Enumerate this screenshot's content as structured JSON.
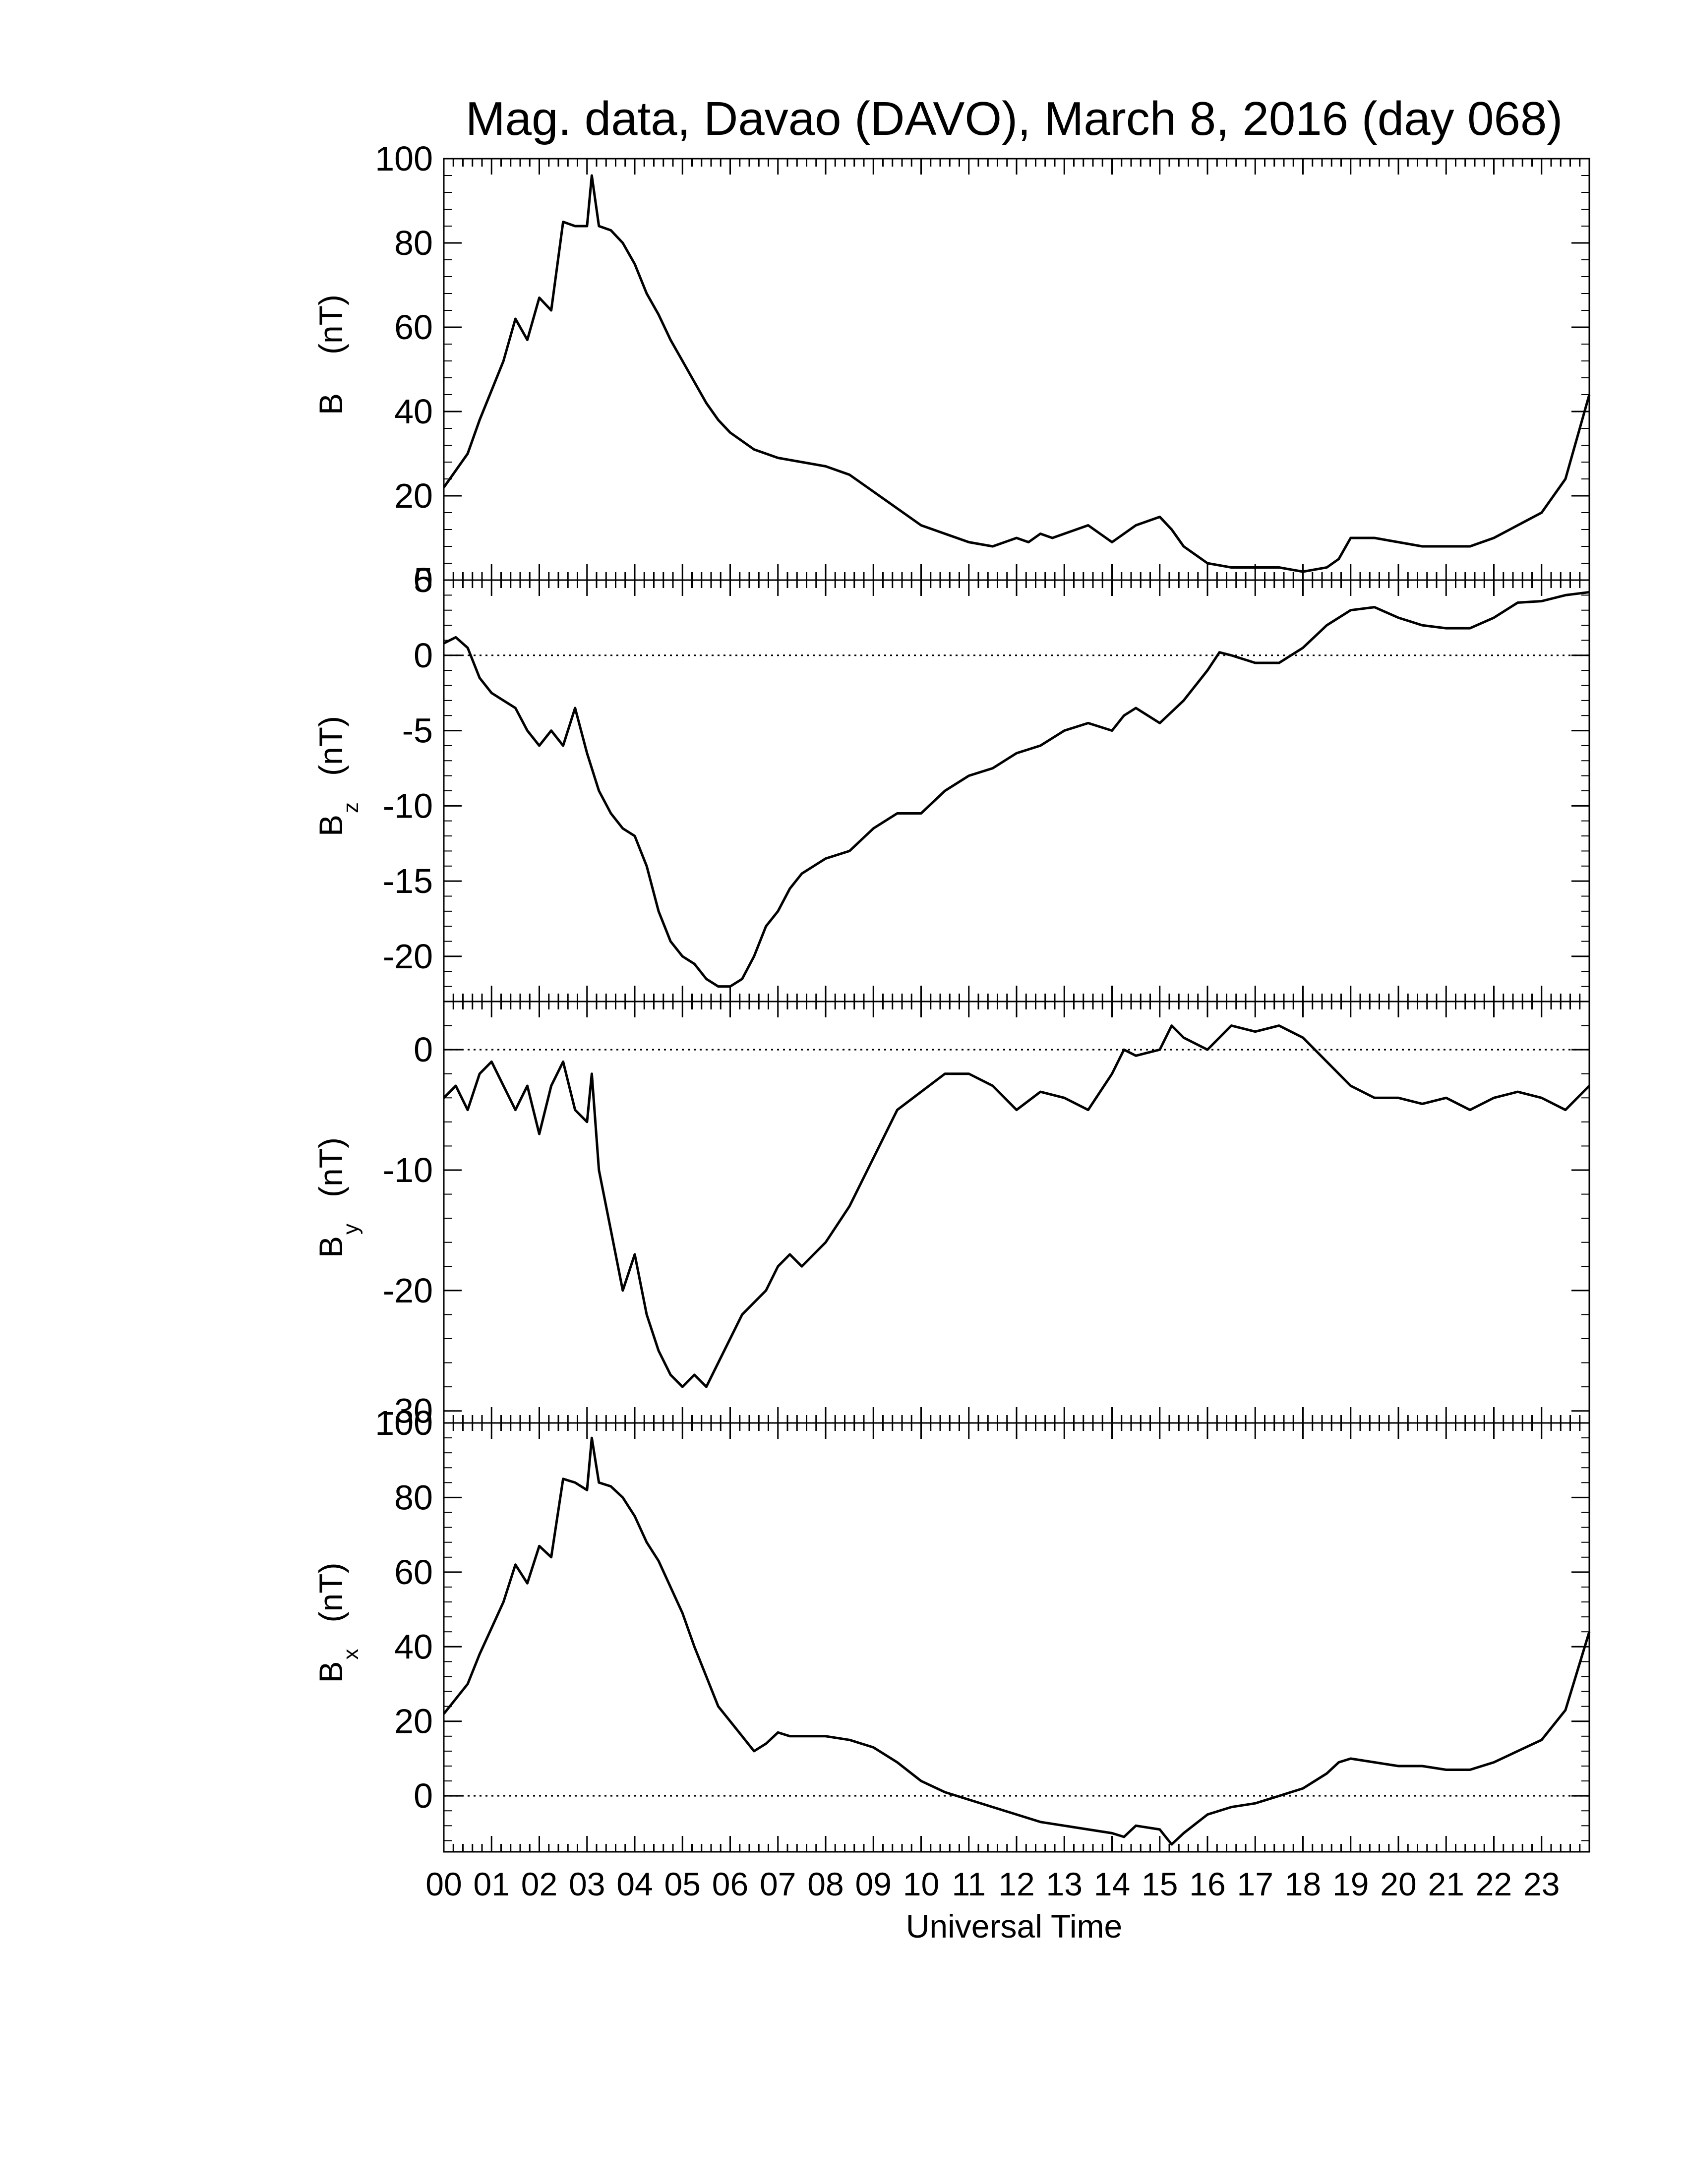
{
  "title": "Mag. data, Davao (DAVO), March 8, 2016 (day 068)",
  "xlabel": "Universal Time",
  "xticks": [
    "00",
    "01",
    "02",
    "03",
    "04",
    "05",
    "06",
    "07",
    "08",
    "09",
    "10",
    "11",
    "12",
    "13",
    "14",
    "15",
    "16",
    "17",
    "18",
    "19",
    "20",
    "21",
    "22",
    "23"
  ],
  "chart_data": [
    {
      "type": "line",
      "ylabel_main": "B",
      "ylabel_sub": "",
      "ylabel_unit": "(nT)",
      "xlim": [
        0,
        24
      ],
      "ylim": [
        0,
        100
      ],
      "yticks": [
        0,
        20,
        40,
        60,
        80,
        100
      ],
      "zero_line": true,
      "x": [
        0,
        0.25,
        0.5,
        0.75,
        1,
        1.25,
        1.5,
        1.75,
        2,
        2.25,
        2.5,
        2.75,
        3,
        3.1,
        3.25,
        3.5,
        3.75,
        4,
        4.25,
        4.5,
        4.75,
        5,
        5.25,
        5.5,
        5.75,
        6,
        6.5,
        7,
        7.5,
        8,
        8.5,
        9,
        9.5,
        10,
        10.5,
        11,
        11.5,
        12,
        12.25,
        12.5,
        12.75,
        13,
        13.5,
        14,
        14.25,
        14.5,
        15,
        15.25,
        15.5,
        16,
        16.5,
        17,
        17.5,
        18,
        18.5,
        18.75,
        19,
        19.5,
        20,
        20.5,
        21,
        21.5,
        22,
        22.5,
        23,
        23.5,
        24
      ],
      "values": [
        22,
        26,
        30,
        38,
        45,
        52,
        62,
        57,
        67,
        64,
        85,
        84,
        84,
        96,
        84,
        83,
        80,
        75,
        68,
        63,
        57,
        52,
        47,
        42,
        38,
        35,
        31,
        29,
        28,
        27,
        25,
        21,
        17,
        13,
        11,
        9,
        8,
        10,
        9,
        11,
        10,
        11,
        13,
        9,
        11,
        13,
        15,
        12,
        8,
        4,
        3,
        3,
        3,
        2,
        3,
        5,
        10,
        10,
        9,
        8,
        8,
        8,
        10,
        13,
        16,
        24,
        44
      ]
    },
    {
      "type": "line",
      "ylabel_main": "B",
      "ylabel_sub": "z",
      "ylabel_unit": "(nT)",
      "xlim": [
        0,
        24
      ],
      "ylim": [
        -23,
        5
      ],
      "yticks": [
        -20,
        -15,
        -10,
        -5,
        0,
        5
      ],
      "zero_line": true,
      "x": [
        0,
        0.25,
        0.5,
        0.75,
        1,
        1.25,
        1.5,
        1.75,
        2,
        2.25,
        2.5,
        2.75,
        3,
        3.25,
        3.5,
        3.75,
        4,
        4.25,
        4.5,
        4.75,
        5,
        5.25,
        5.5,
        5.75,
        6,
        6.25,
        6.5,
        6.75,
        7,
        7.25,
        7.5,
        8,
        8.5,
        9,
        9.5,
        10,
        10.5,
        11,
        11.5,
        12,
        12.5,
        13,
        13.5,
        14,
        14.25,
        14.5,
        15,
        15.5,
        16,
        16.25,
        16.5,
        17,
        17.5,
        18,
        18.5,
        19,
        19.5,
        20,
        20.5,
        21,
        21.5,
        22,
        22.5,
        23,
        23.5,
        24
      ],
      "values": [
        0.8,
        1.2,
        0.5,
        -1.5,
        -2.5,
        -3,
        -3.5,
        -5,
        -6,
        -5,
        -6,
        -3.5,
        -6.5,
        -9,
        -10.5,
        -11.5,
        -12,
        -14,
        -17,
        -19,
        -20,
        -20.5,
        -21.5,
        -22,
        -22,
        -21.5,
        -20,
        -18,
        -17,
        -15.5,
        -14.5,
        -13.5,
        -13,
        -11.5,
        -10.5,
        -10.5,
        -9,
        -8,
        -7.5,
        -6.5,
        -6,
        -5,
        -4.5,
        -5,
        -4,
        -3.5,
        -4.5,
        -3,
        -1,
        0.2,
        0,
        -0.5,
        -0.5,
        0.5,
        2,
        3,
        3.2,
        2.5,
        2,
        1.8,
        1.8,
        2.5,
        3.5,
        3.6,
        4,
        4.2
      ]
    },
    {
      "type": "line",
      "ylabel_main": "B",
      "ylabel_sub": "y",
      "ylabel_unit": "(nT)",
      "xlim": [
        0,
        24
      ],
      "ylim": [
        -31,
        4
      ],
      "yticks": [
        -30,
        -20,
        -10,
        0
      ],
      "zero_line": true,
      "x": [
        0,
        0.25,
        0.5,
        0.75,
        1,
        1.25,
        1.5,
        1.75,
        2,
        2.25,
        2.5,
        2.75,
        3,
        3.1,
        3.25,
        3.5,
        3.75,
        4,
        4.25,
        4.5,
        4.75,
        5,
        5.25,
        5.5,
        5.75,
        6,
        6.25,
        6.5,
        6.75,
        7,
        7.25,
        7.5,
        8,
        8.5,
        9,
        9.5,
        10,
        10.5,
        11,
        11.5,
        12,
        12.5,
        13,
        13.5,
        14,
        14.25,
        14.5,
        15,
        15.25,
        15.5,
        16,
        16.5,
        17,
        17.5,
        18,
        18.5,
        19,
        19.5,
        20,
        20.5,
        21,
        21.5,
        22,
        22.5,
        23,
        23.5,
        24
      ],
      "values": [
        -4,
        -3,
        -5,
        -2,
        -1,
        -3,
        -5,
        -3,
        -7,
        -3,
        -1,
        -5,
        -6,
        -2,
        -10,
        -15,
        -20,
        -17,
        -22,
        -25,
        -27,
        -28,
        -27,
        -28,
        -26,
        -24,
        -22,
        -21,
        -20,
        -18,
        -17,
        -18,
        -16,
        -13,
        -9,
        -5,
        -3.5,
        -2,
        -2,
        -3,
        -5,
        -3.5,
        -4,
        -5,
        -2,
        0,
        -0.5,
        0,
        2,
        1,
        0,
        2,
        1.5,
        2,
        1,
        -1,
        -3,
        -4,
        -4,
        -4.5,
        -4,
        -5,
        -4,
        -3.5,
        -4,
        -5,
        -3
      ]
    },
    {
      "type": "line",
      "ylabel_main": "B",
      "ylabel_sub": "x",
      "ylabel_unit": "(nT)",
      "xlim": [
        0,
        24
      ],
      "ylim": [
        -15,
        100
      ],
      "yticks": [
        0,
        20,
        40,
        60,
        80,
        100
      ],
      "zero_line": true,
      "x": [
        0,
        0.25,
        0.5,
        0.75,
        1,
        1.25,
        1.5,
        1.75,
        2,
        2.25,
        2.5,
        2.75,
        3,
        3.1,
        3.25,
        3.5,
        3.75,
        4,
        4.25,
        4.5,
        4.75,
        5,
        5.25,
        5.5,
        5.75,
        6,
        6.25,
        6.5,
        6.75,
        7,
        7.25,
        7.5,
        8,
        8.5,
        9,
        9.5,
        10,
        10.5,
        11,
        11.5,
        12,
        12.5,
        13,
        13.5,
        14,
        14.25,
        14.5,
        15,
        15.25,
        15.5,
        16,
        16.5,
        17,
        17.5,
        18,
        18.5,
        18.75,
        19,
        19.5,
        20,
        20.5,
        21,
        21.5,
        22,
        22.5,
        23,
        23.5,
        24
      ],
      "values": [
        22,
        26,
        30,
        38,
        45,
        52,
        62,
        57,
        67,
        64,
        85,
        84,
        82,
        96,
        84,
        83,
        80,
        75,
        68,
        63,
        56,
        49,
        40,
        32,
        24,
        20,
        16,
        12,
        14,
        17,
        16,
        16,
        16,
        15,
        13,
        9,
        4,
        1,
        -1,
        -3,
        -5,
        -7,
        -8,
        -9,
        -10,
        -11,
        -8,
        -9,
        -13,
        -10,
        -5,
        -3,
        -2,
        0,
        2,
        6,
        9,
        10,
        9,
        8,
        8,
        7,
        7,
        9,
        12,
        15,
        23,
        44
      ]
    }
  ]
}
